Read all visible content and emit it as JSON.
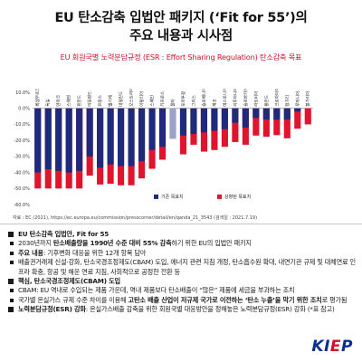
{
  "title": {
    "line1": "EU 탄소감축 입법안 패키지 (‘Fit for 55’)의",
    "line2": "주요 내용과 시사점"
  },
  "chart_data": {
    "type": "bar",
    "title": "EU 회원국별 노력분담규정 (ESR : Effort Sharing Regulation) 탄소감축 목표",
    "categories": [
      "룩셈부르크",
      "독일",
      "덴마크",
      "스웨덴",
      "핀란드",
      "아일랜드",
      "프랑스",
      "벨기에",
      "네덜란드",
      "오스트리아",
      "이탈리아",
      "스페인",
      "키프로스",
      "몰타",
      "포르투갈",
      "그리스",
      "슬로베니아",
      "체코",
      "에스토니아",
      "리투아니아",
      "슬로바키아",
      "라트비아",
      "폴란드",
      "크로아티아",
      "헝가리",
      "루마니아",
      "불가리아"
    ],
    "series": [
      {
        "name": "기존 목표치",
        "color": "#1f2a7c",
        "values": [
          -40,
          -38,
          -39,
          -40,
          -39,
          -30,
          -37,
          -35,
          -36,
          -36,
          -33,
          -26,
          -24,
          -19,
          -17,
          -16,
          -15,
          -14,
          -13,
          -9,
          -12,
          -6,
          -7,
          -7,
          -7,
          -2,
          0
        ]
      },
      {
        "name": "상향된 목표치",
        "color": "#e0142c",
        "values": [
          -50,
          -50,
          -50,
          -50,
          -50,
          -42,
          -47.5,
          -47,
          -48,
          -48,
          -43.7,
          -37.7,
          -32,
          -19,
          -28.7,
          -22.7,
          -27,
          -26,
          -24,
          -21,
          -22.7,
          -17,
          -17.7,
          -16.7,
          -18.7,
          -12.7,
          -10
        ]
      }
    ],
    "highlight_index": 13,
    "y_ticks": [
      "10.0%",
      "0.0%",
      "-10.0%",
      "-20.0%",
      "-30.0%",
      "-40.0%",
      "-50.0%",
      "-60.0%"
    ],
    "ylim": [
      -60,
      10
    ],
    "legend": [
      "기존 목표치",
      "상향된 목표치"
    ]
  },
  "source": "자료 : EC (2021), https://ec.europa.eu/commission/presscorner/detail/en/qanda_21_3543 (검색일 : 2021.7.19)",
  "sections": [
    {
      "head": "EU 탄소감축 입법안, Fit for 55",
      "items": [
        [
          {
            "t": "2030년까지 "
          },
          {
            "t": "탄소배출량을 1990년 수준 대비 55% 감축",
            "b": true
          },
          {
            "t": "하기 위한 EU의 입법안 패키지"
          }
        ],
        [
          {
            "t": "주요 내용",
            "b": true
          },
          {
            "t": ": 기후변화 대응을 위한 12개 항목 담아"
          }
        ],
        [
          {
            "t": "배출권거래제 신설·강화, 탄소국경조정제도(CBAM) 도입, 에너지 관련 지침 개정, 탄소흡수원 확대, 내연기관 규제 및 대체연료 인프라 확충, 항공 및 해운 연료 지침, 사회적으로 공정한 전환 등"
          }
        ]
      ]
    },
    {
      "head": "핵심, 탄소국경조정제도(CBAM) 도입",
      "items": [
        [
          {
            "t": "CBAM: EU 역내로 수입되는 제품 가운데, 역내 제품보다 탄소배출이 “많은” 제품에 세금을 부과하는 조치"
          }
        ],
        [
          {
            "t": "국가별 온실가스 규제 수준 차이를 이용해 "
          },
          {
            "t": "고탄소 배출 산업이 저규제 국가로 이전하는 ‘탄소 누출’을 막기 위한 조치",
            "b": true
          },
          {
            "t": "로 평가됨"
          }
        ]
      ]
    },
    {
      "head": "노력분담규정(ESR) 강화",
      "head_rest": ": 온실가스배출 감축을 위한 회원국별 대응방안을 정해놓은 노력분담규정(ESR) 강화 (*표 참고)",
      "items": []
    }
  ],
  "logo": "KIEP"
}
